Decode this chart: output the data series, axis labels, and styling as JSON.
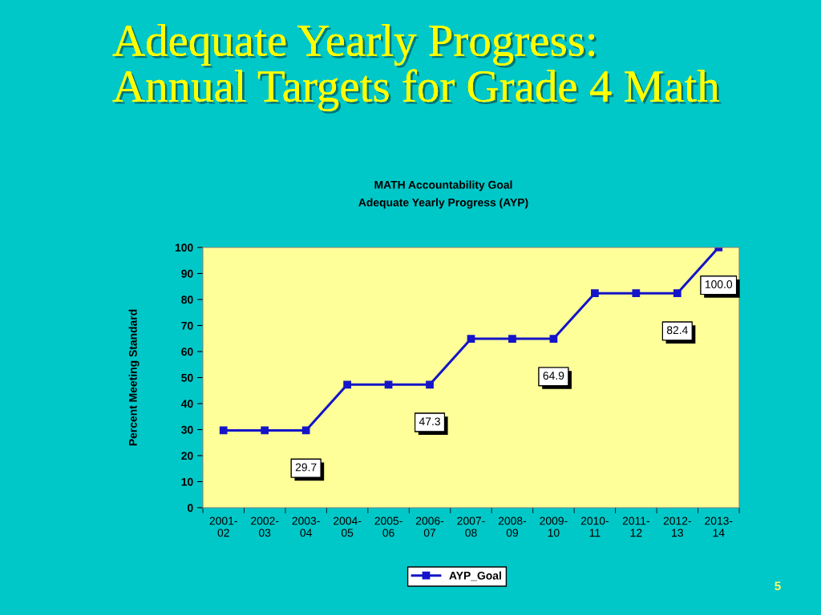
{
  "chart_data": {
    "type": "line",
    "title": "Adequate Yearly Progress:\nAnnual Targets for Grade 4 Math",
    "subtitle": "MATH Accountability Goal\nAdequate Yearly Progress (AYP)",
    "ylabel": "Percent Meeting Standard",
    "categories": [
      "2001-\n02",
      "2002-\n03",
      "2003-\n04",
      "2004-\n05",
      "2005-\n06",
      "2006-\n07",
      "2007-\n08",
      "2008-\n09",
      "2009-\n10",
      "2010-\n11",
      "2011-\n12",
      "2012-\n13",
      "2013-\n14"
    ],
    "series": [
      {
        "name": "AYP_Goal",
        "color": "#1414c8",
        "values": [
          29.7,
          29.7,
          29.7,
          47.3,
          47.3,
          47.3,
          64.9,
          64.9,
          64.9,
          82.4,
          82.4,
          82.4,
          100.0
        ],
        "value_labels": [
          null,
          null,
          "29.7",
          null,
          null,
          "47.3",
          null,
          null,
          "64.9",
          null,
          null,
          "82.4",
          "100.0"
        ]
      }
    ],
    "ylim": [
      0,
      100
    ],
    "yticks": [
      0,
      10,
      20,
      30,
      40,
      50,
      60,
      70,
      80,
      90,
      100
    ],
    "grid": false,
    "legend": "bottom",
    "marker": "square",
    "line_style": "solid",
    "annotations": [
      "5"
    ]
  }
}
